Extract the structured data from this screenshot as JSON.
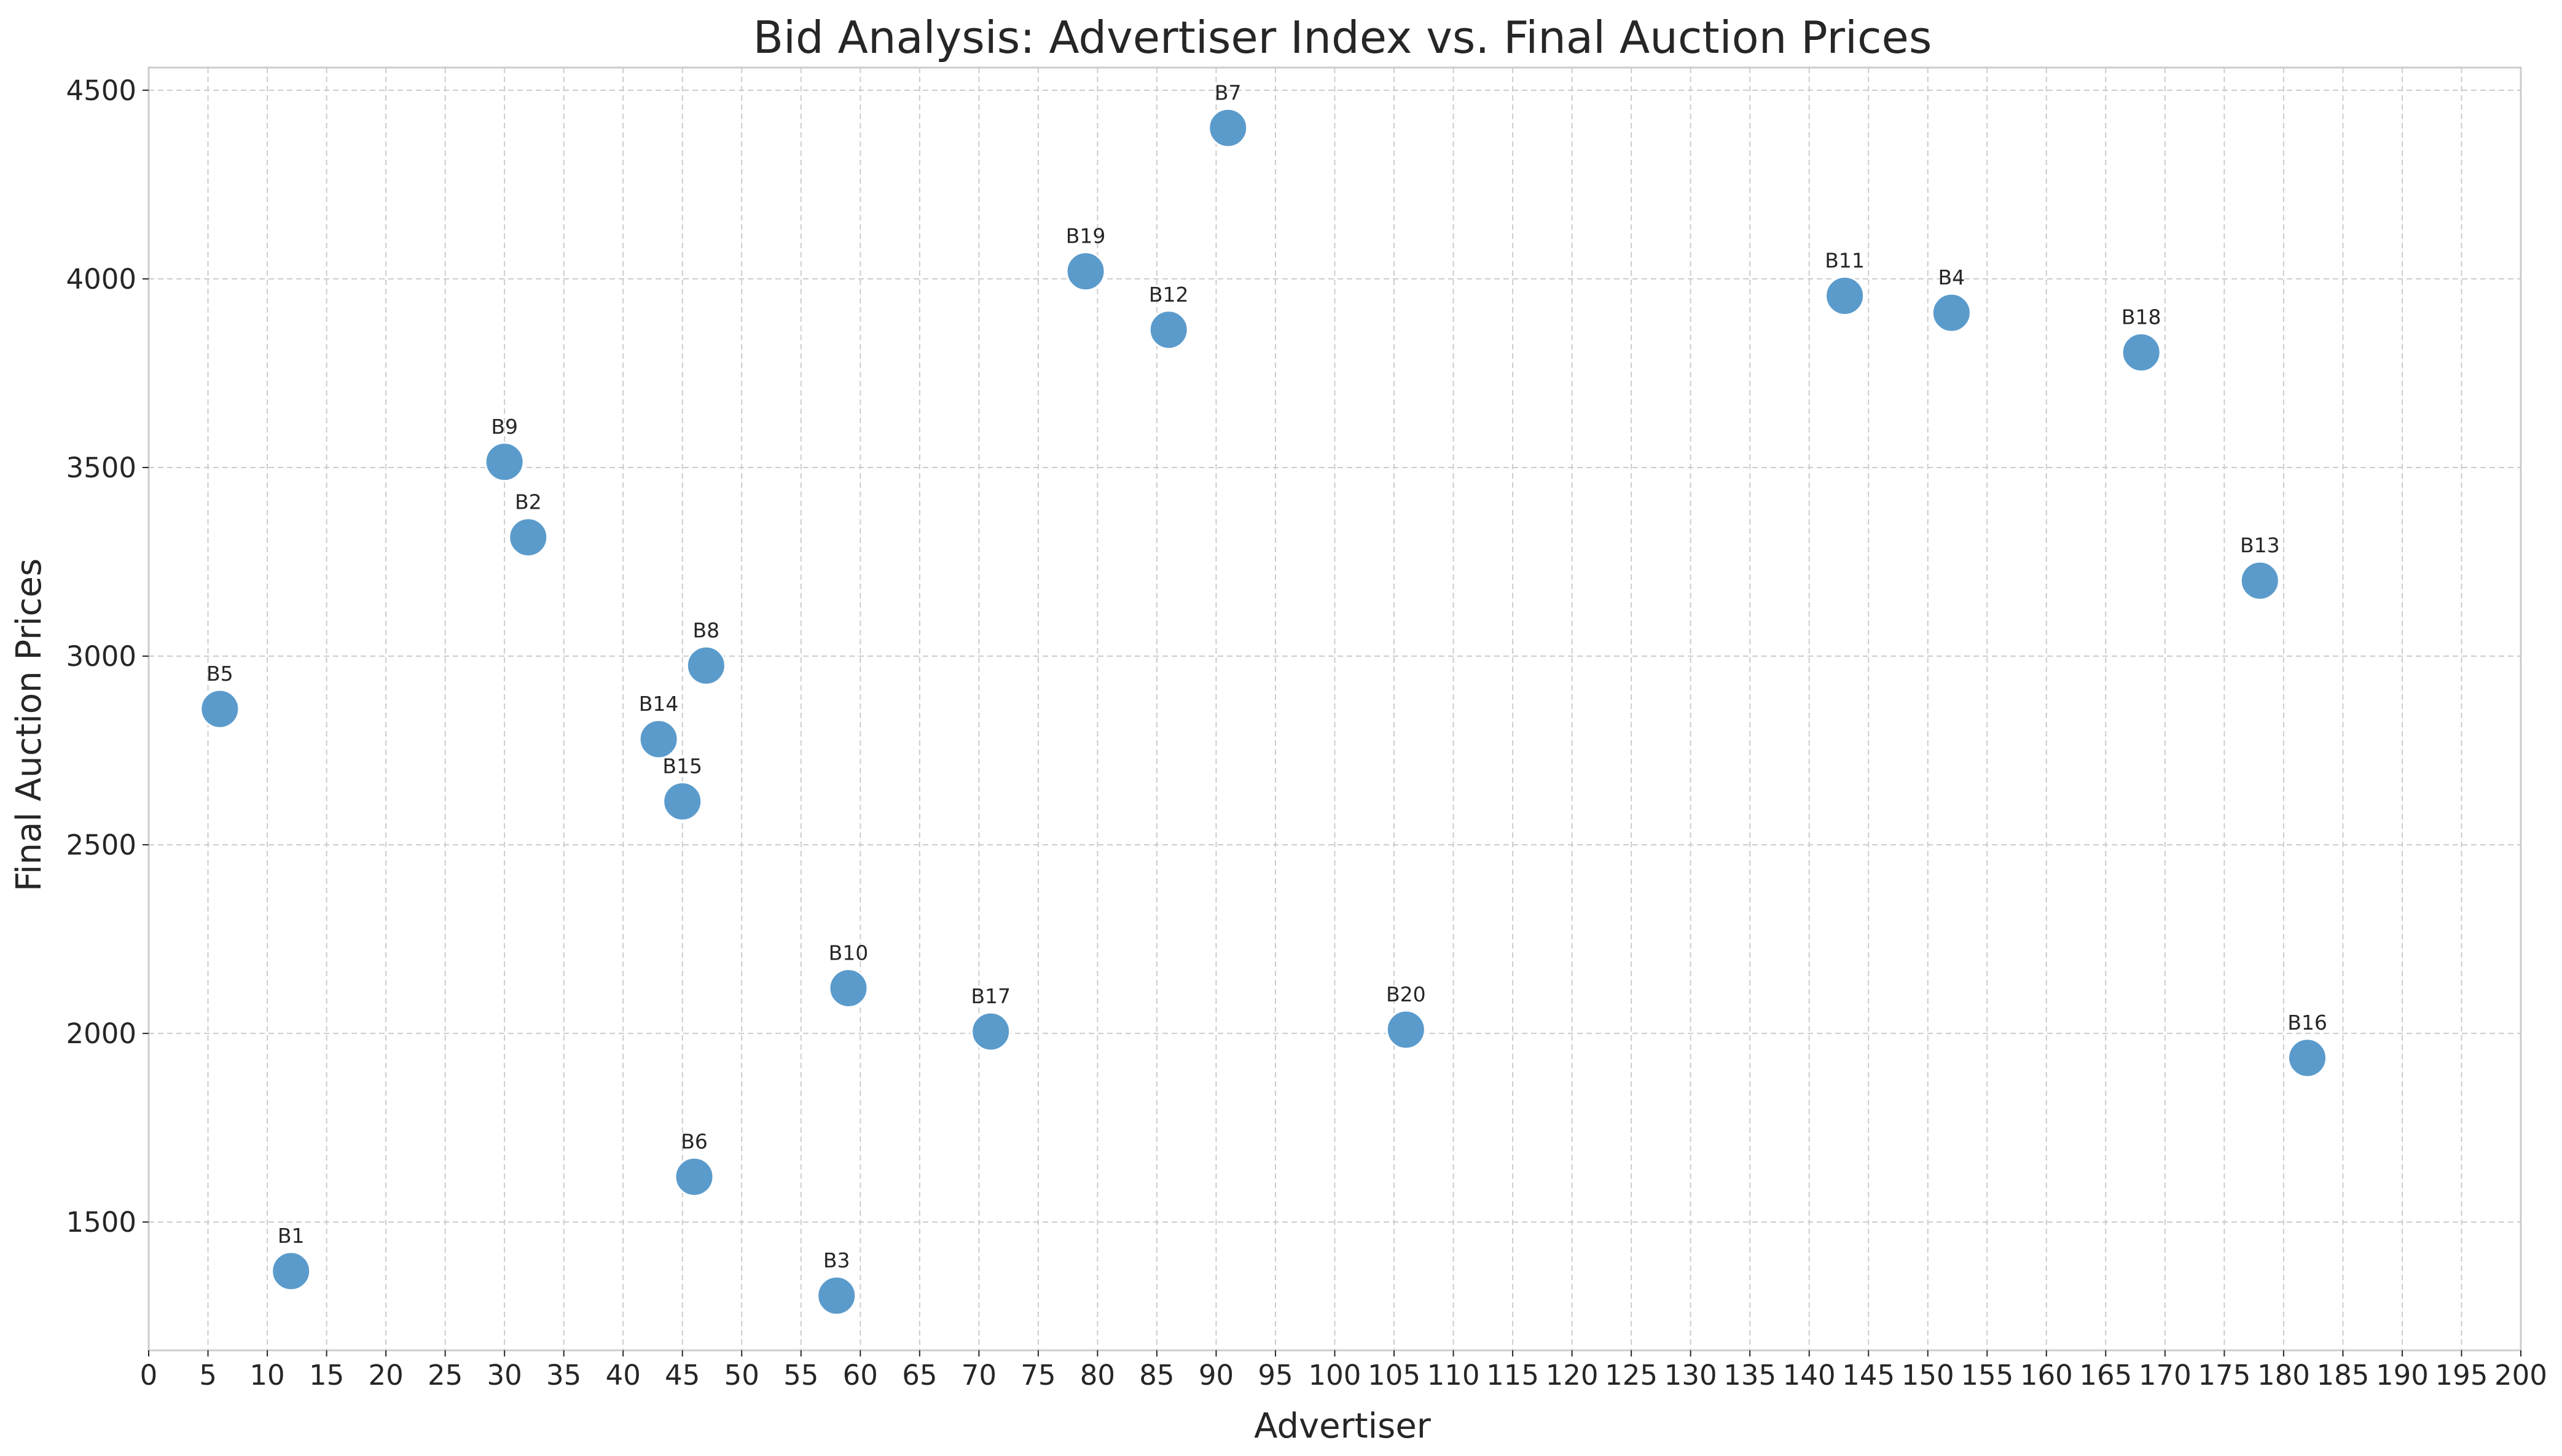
{
  "chart_data": {
    "type": "scatter",
    "title": "Bid Analysis: Advertiser Index vs. Final Auction Prices",
    "xlabel": "Advertiser",
    "ylabel": "Final Auction Prices",
    "xlim": [
      0,
      200
    ],
    "ylim": [
      1160,
      4560
    ],
    "x_ticks": [
      0,
      5,
      10,
      15,
      20,
      25,
      30,
      35,
      40,
      45,
      50,
      55,
      60,
      65,
      70,
      75,
      80,
      85,
      90,
      95,
      100,
      105,
      110,
      115,
      120,
      125,
      130,
      135,
      140,
      145,
      150,
      155,
      160,
      165,
      170,
      175,
      180,
      185,
      190,
      195,
      200
    ],
    "y_ticks": [
      1500,
      2000,
      2500,
      3000,
      3500,
      4000,
      4500
    ],
    "grid": true,
    "point_color": "#5b9bcc",
    "points": [
      {
        "label": "B1",
        "x": 12,
        "y": 1370
      },
      {
        "label": "B2",
        "x": 32,
        "y": 3315
      },
      {
        "label": "B3",
        "x": 58,
        "y": 1305
      },
      {
        "label": "B4",
        "x": 152,
        "y": 3910
      },
      {
        "label": "B5",
        "x": 6,
        "y": 2860
      },
      {
        "label": "B6",
        "x": 46,
        "y": 1620
      },
      {
        "label": "B7",
        "x": 91,
        "y": 4400
      },
      {
        "label": "B8",
        "x": 47,
        "y": 2975
      },
      {
        "label": "B9",
        "x": 30,
        "y": 3515
      },
      {
        "label": "B10",
        "x": 59,
        "y": 2120
      },
      {
        "label": "B11",
        "x": 143,
        "y": 3955
      },
      {
        "label": "B12",
        "x": 86,
        "y": 3865
      },
      {
        "label": "B13",
        "x": 178,
        "y": 3200
      },
      {
        "label": "B14",
        "x": 43,
        "y": 2780
      },
      {
        "label": "B15",
        "x": 45,
        "y": 2615
      },
      {
        "label": "B16",
        "x": 182,
        "y": 1935
      },
      {
        "label": "B17",
        "x": 71,
        "y": 2005
      },
      {
        "label": "B18",
        "x": 168,
        "y": 3805
      },
      {
        "label": "B19",
        "x": 79,
        "y": 4020
      },
      {
        "label": "B20",
        "x": 106,
        "y": 2010
      }
    ]
  }
}
